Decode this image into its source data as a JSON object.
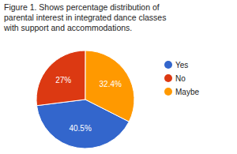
{
  "chart_data": {
    "type": "pie",
    "title": "Figure 1. Shows percentage distribution of parental interest in integrated dance classes with support and accommodations.",
    "categories": [
      "Yes",
      "No",
      "Maybe"
    ],
    "values": [
      40.5,
      27,
      32.4
    ],
    "value_labels": [
      "40.5%",
      "27%",
      "32.4%"
    ],
    "colors": [
      "#3366cc",
      "#dc3912",
      "#ff9900"
    ],
    "data_labels": true,
    "legend": "right"
  }
}
